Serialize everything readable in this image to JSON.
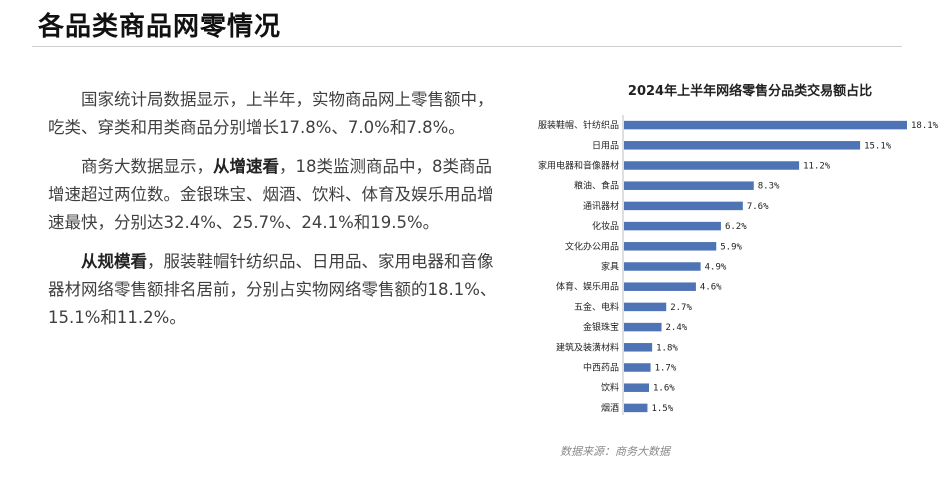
{
  "page": {
    "title": "各品类商品网零情况"
  },
  "text": {
    "para1": "国家统计局数据显示，上半年，实物商品网上零售额中，吃类、穿类和用类商品分别增长17.8%、7.0%和7.8%。",
    "para2_pre": "商务大数据显示，",
    "para2_bold": "从增速看",
    "para2_post": "，18类监测商品中，8类商品增速超过两位数。金银珠宝、烟酒、饮料、体育及娱乐用品增速最快，分别达32.4%、25.7%、24.1%和19.5%。",
    "para3_bold": "从规模看",
    "para3_post": "，服装鞋帽针纺织品、日用品、家用电器和音像器材网络零售额排名居前，分别占实物网络零售额的18.1%、15.1%和11.2%。"
  },
  "chart_data": {
    "type": "bar",
    "orientation": "horizontal",
    "title": "2024年上半年网络零售分品类交易额占比",
    "categories": [
      "服装鞋帽、针纺织品",
      "日用品",
      "家用电器和音像器材",
      "粮油、食品",
      "通讯器材",
      "化妆品",
      "文化办公用品",
      "家具",
      "体育、娱乐用品",
      "五金、电料",
      "金银珠宝",
      "建筑及装潢材料",
      "中西药品",
      "饮料",
      "烟酒"
    ],
    "values": [
      18.1,
      15.1,
      11.2,
      8.3,
      7.6,
      6.2,
      5.9,
      4.9,
      4.6,
      2.7,
      2.4,
      1.8,
      1.7,
      1.6,
      1.5
    ],
    "value_labels": [
      "18.1%",
      "15.1%",
      "11.2%",
      "8.3%",
      "7.6%",
      "6.2%",
      "5.9%",
      "4.9%",
      "4.6%",
      "2.7%",
      "2.4%",
      "1.8%",
      "1.7%",
      "1.6%",
      "1.5%"
    ],
    "unit": "%",
    "xlim": [
      0,
      18.1
    ],
    "bar_color": "#4f74b5",
    "grid": false,
    "legend": "none"
  },
  "source": "数据来源：商务大数据"
}
